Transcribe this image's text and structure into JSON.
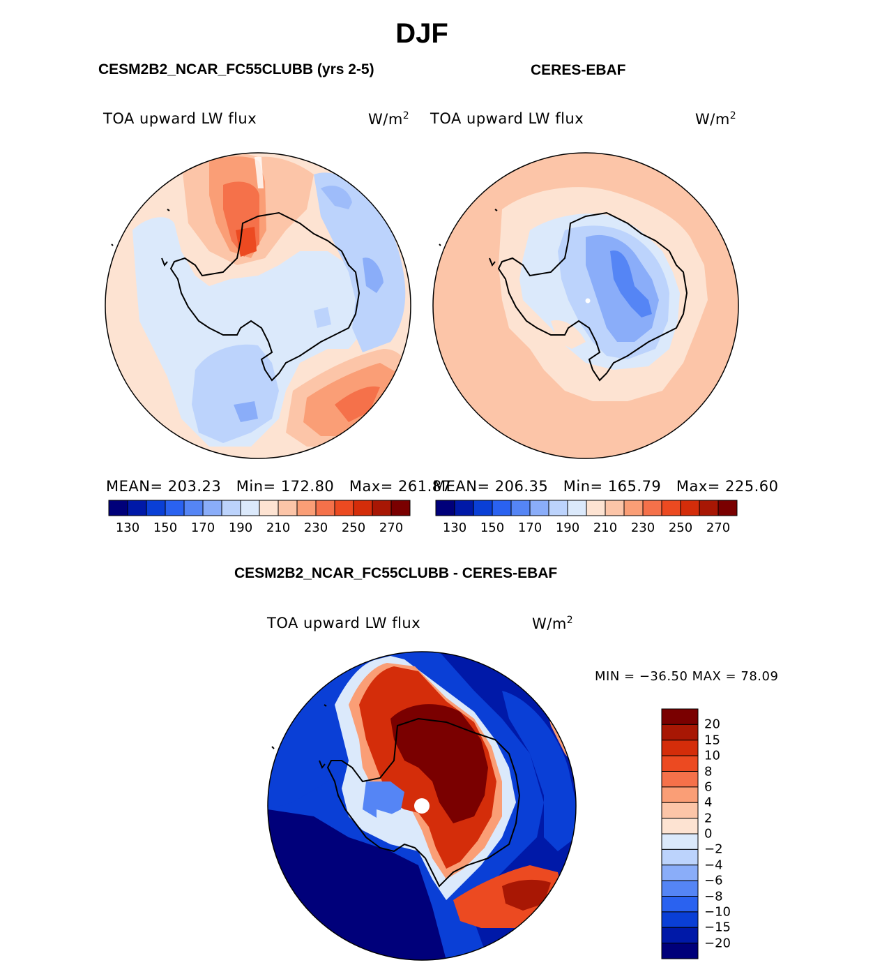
{
  "figure": {
    "title": "DJF"
  },
  "panels": [
    {
      "title": "CESM2B2_NCAR_FC55CLUBB (yrs 2-5)",
      "variable": "TOA upward LW flux",
      "units": "W/m",
      "units_exp": "2",
      "stats": {
        "mean_label": "MEAN=",
        "mean": "203.23",
        "min_label": "Min=",
        "min": "172.80",
        "max_label": "Max=",
        "max": "261.87"
      }
    },
    {
      "title": "CERES-EBAF",
      "variable": "TOA upward LW flux",
      "units": "W/m",
      "units_exp": "2",
      "stats": {
        "mean_label": "MEAN=",
        "mean": "206.35",
        "min_label": "Min=",
        "min": "165.79",
        "max_label": "Max=",
        "max": "225.60"
      }
    }
  ],
  "diff_panel": {
    "title": "CESM2B2_NCAR_FC55CLUBB - CERES-EBAF",
    "variable": "TOA upward LW flux",
    "units": "W/m",
    "units_exp": "2",
    "minmax": "MIN = −36.50 MAX =   78.09"
  },
  "colors": {
    "abs_scale": [
      "#00007a",
      "#0019a8",
      "#0a3fd6",
      "#2a62f0",
      "#5585f5",
      "#8aadf9",
      "#bcd3fc",
      "#dbe9fb",
      "#fde3d2",
      "#fcc5a8",
      "#fa9e76",
      "#f5714a",
      "#ec4a21",
      "#d42d0a",
      "#a81704",
      "#7a0000"
    ],
    "diff_scale": [
      "#7a0000",
      "#a81704",
      "#d42d0a",
      "#ec4a21",
      "#f5714a",
      "#fa9e76",
      "#fcc5a8",
      "#fde3d2",
      "#dbe9fb",
      "#bcd3fc",
      "#8aadf9",
      "#5585f5",
      "#2a62f0",
      "#0a3fd6",
      "#0019a8",
      "#00007a"
    ]
  },
  "chart_data": [
    {
      "type": "heatmap",
      "title": "CESM2B2_NCAR_FC55CLUBB (yrs 2-5)",
      "variable": "TOA upward LW flux",
      "units": "W/m2",
      "season": "DJF",
      "projection": "south polar stereographic",
      "colorbar_levels": [
        120,
        130,
        140,
        150,
        160,
        170,
        180,
        190,
        200,
        210,
        220,
        230,
        240,
        250,
        260,
        270,
        280
      ],
      "colorbar_tick_labels": [
        "130",
        "150",
        "170",
        "190",
        "210",
        "230",
        "250",
        "270"
      ],
      "stats": {
        "mean": 203.23,
        "min": 172.8,
        "max": 261.87
      }
    },
    {
      "type": "heatmap",
      "title": "CERES-EBAF",
      "variable": "TOA upward LW flux",
      "units": "W/m2",
      "season": "DJF",
      "projection": "south polar stereographic",
      "colorbar_levels": [
        120,
        130,
        140,
        150,
        160,
        170,
        180,
        190,
        200,
        210,
        220,
        230,
        240,
        250,
        260,
        270,
        280
      ],
      "colorbar_tick_labels": [
        "130",
        "150",
        "170",
        "190",
        "210",
        "230",
        "250",
        "270"
      ],
      "stats": {
        "mean": 206.35,
        "min": 165.79,
        "max": 225.6
      }
    },
    {
      "type": "heatmap",
      "title": "CESM2B2_NCAR_FC55CLUBB - CERES-EBAF",
      "variable": "TOA upward LW flux",
      "units": "W/m2",
      "season": "DJF",
      "projection": "south polar stereographic",
      "colorbar_tick_labels": [
        "20",
        "15",
        "10",
        "8",
        "6",
        "4",
        "2",
        "0",
        "−2",
        "−4",
        "−6",
        "−8",
        "−10",
        "−15",
        "−20"
      ],
      "stats": {
        "min": -36.5,
        "max": 78.09
      }
    }
  ]
}
